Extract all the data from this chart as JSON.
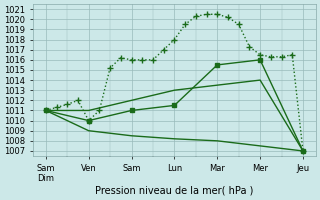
{
  "background_color": "#cce8e8",
  "grid_color": "#99bbbb",
  "line_color": "#1a6b1a",
  "xlabel": "Pression niveau de la mer( hPa )",
  "ylim": [
    1006.5,
    1021.5
  ],
  "yticks": [
    1007,
    1008,
    1009,
    1010,
    1011,
    1012,
    1013,
    1014,
    1015,
    1016,
    1017,
    1018,
    1019,
    1020,
    1021
  ],
  "xtick_labels": [
    "Sam\nDim",
    "Ven",
    "Sam",
    "Lun",
    "Mar",
    "Mer",
    "Jeu"
  ],
  "xtick_pos": [
    0,
    1,
    2,
    3,
    4,
    5,
    6
  ],
  "series": [
    {
      "x": [
        0,
        0.25,
        0.5,
        0.75,
        1.0,
        1.25,
        1.5,
        1.75,
        2.0,
        2.25,
        2.5,
        2.75,
        3.0,
        3.25,
        3.5,
        3.75,
        4.0,
        4.25,
        4.5,
        4.75,
        5.0,
        5.25,
        5.5,
        5.75,
        6.0
      ],
      "y": [
        1011,
        1011.3,
        1011.6,
        1012.0,
        1010,
        1011,
        1015.2,
        1016.2,
        1016.0,
        1016.0,
        1016.0,
        1017.0,
        1018.0,
        1019.5,
        1020.3,
        1020.5,
        1020.5,
        1020.2,
        1019.5,
        1017.3,
        1016.5,
        1016.3,
        1016.3,
        1016.5,
        1007
      ],
      "linestyle": ":",
      "marker": "+",
      "markersize": 4,
      "linewidth": 1.0
    },
    {
      "x": [
        0,
        1,
        2,
        3,
        4,
        5,
        6
      ],
      "y": [
        1011,
        1010,
        1011,
        1011.5,
        1015.5,
        1016,
        1007
      ],
      "linestyle": "-",
      "marker": "s",
      "markersize": 2.5,
      "linewidth": 1.0
    },
    {
      "x": [
        0,
        1,
        2,
        3,
        4,
        5,
        6
      ],
      "y": [
        1011,
        1009,
        1008.5,
        1008.2,
        1008.0,
        1007.5,
        1007
      ],
      "linestyle": "-",
      "marker": null,
      "markersize": 0,
      "linewidth": 1.0
    },
    {
      "x": [
        0,
        1,
        2,
        3,
        4,
        5,
        6
      ],
      "y": [
        1011,
        1011,
        1012,
        1013,
        1013.5,
        1014,
        1007
      ],
      "linestyle": "-",
      "marker": null,
      "markersize": 0,
      "linewidth": 1.0
    }
  ]
}
